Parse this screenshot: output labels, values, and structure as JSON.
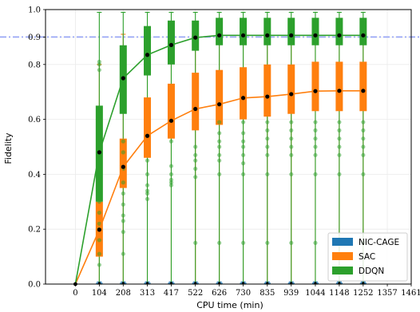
{
  "chart_data": {
    "type": "box",
    "xlabel": "CPU time (min)",
    "ylabel": "Fidelity",
    "x_ticks": [
      0,
      104,
      208,
      313,
      417,
      522,
      626,
      730,
      835,
      939,
      1044,
      1148,
      1252,
      1357,
      1461
    ],
    "y_ticks": [
      0.0,
      0.2,
      0.4,
      0.6,
      0.8,
      0.9,
      1.0
    ],
    "y_tick_labels": [
      "0.0",
      "0.2",
      "0.4",
      "0.6",
      "0.8",
      "0.9",
      "1.0"
    ],
    "xlim": [
      -130,
      1461
    ],
    "ylim": [
      0,
      1.0
    ],
    "grid": true,
    "reference_line": {
      "y": 0.9,
      "style": "dash-dot",
      "color": "#9aa7f5"
    },
    "legend": {
      "placement": "bottom-right",
      "entries": [
        "NIC-CAGE",
        "SAC",
        "DDQN"
      ]
    },
    "series": [
      {
        "name": "NIC-CAGE",
        "color": "#1f77b4",
        "x": [
          104,
          208,
          313,
          417,
          522,
          626,
          730,
          835,
          939,
          1044,
          1148,
          1252
        ],
        "mean": [
          0.003,
          0.003,
          0.003,
          0.003,
          0.003,
          0.003,
          0.003,
          0.003,
          0.003,
          0.003,
          0.003,
          0.003
        ],
        "q1": [
          0.001,
          0.001,
          0.001,
          0.001,
          0.001,
          0.001,
          0.001,
          0.001,
          0.001,
          0.001,
          0.001,
          0.001
        ],
        "q3": [
          0.005,
          0.005,
          0.005,
          0.005,
          0.005,
          0.005,
          0.005,
          0.005,
          0.005,
          0.005,
          0.005,
          0.005
        ],
        "whisker_low": [
          0.0,
          0.0,
          0.0,
          0.0,
          0.0,
          0.0,
          0.0,
          0.0,
          0.0,
          0.0,
          0.0,
          0.0
        ],
        "whisker_high": [
          0.008,
          0.008,
          0.008,
          0.008,
          0.008,
          0.008,
          0.008,
          0.008,
          0.008,
          0.008,
          0.008,
          0.008
        ]
      },
      {
        "name": "SAC",
        "color": "#ff7f0e",
        "x": [
          104,
          208,
          313,
          417,
          522,
          626,
          730,
          835,
          939,
          1044,
          1148,
          1252
        ],
        "mean": [
          0.198,
          0.427,
          0.54,
          0.595,
          0.638,
          0.655,
          0.678,
          0.683,
          0.692,
          0.703,
          0.704,
          0.704
        ],
        "q1": [
          0.1,
          0.35,
          0.46,
          0.53,
          0.56,
          0.58,
          0.6,
          0.61,
          0.62,
          0.63,
          0.63,
          0.63
        ],
        "q3": [
          0.3,
          0.53,
          0.68,
          0.73,
          0.77,
          0.78,
          0.79,
          0.8,
          0.8,
          0.81,
          0.81,
          0.81
        ],
        "whisker_low": [
          0.0,
          0.0,
          0.0,
          0.0,
          0.0,
          0.0,
          0.0,
          0.0,
          0.0,
          0.0,
          0.0,
          0.0
        ],
        "whisker_high": [
          0.8,
          0.91,
          0.9,
          0.9,
          0.9,
          0.9,
          0.9,
          0.9,
          0.9,
          0.9,
          0.9,
          0.9
        ]
      },
      {
        "name": "DDQN",
        "color": "#2ca02c",
        "x": [
          104,
          208,
          313,
          417,
          522,
          626,
          730,
          835,
          939,
          1044,
          1148,
          1252
        ],
        "mean": [
          0.48,
          0.75,
          0.835,
          0.871,
          0.898,
          0.906,
          0.906,
          0.906,
          0.906,
          0.906,
          0.906,
          0.906
        ],
        "q1": [
          0.3,
          0.62,
          0.76,
          0.8,
          0.85,
          0.87,
          0.87,
          0.87,
          0.87,
          0.87,
          0.87,
          0.87
        ],
        "q3": [
          0.65,
          0.87,
          0.94,
          0.96,
          0.96,
          0.97,
          0.97,
          0.97,
          0.97,
          0.97,
          0.97,
          0.97
        ],
        "whisker_low": [
          0.0,
          0.0,
          0.0,
          0.0,
          0.0,
          0.0,
          0.0,
          0.0,
          0.0,
          0.0,
          0.0,
          0.0
        ],
        "whisker_high": [
          0.99,
          0.99,
          0.99,
          0.99,
          0.99,
          0.99,
          0.99,
          0.99,
          0.99,
          0.99,
          0.99,
          0.99
        ],
        "outliers": [
          [
            0.81,
            0.8,
            0.78,
            0.62,
            0.6,
            0.56,
            0.52,
            0.48,
            0.45,
            0.42,
            0.38,
            0.34,
            0.3,
            0.26,
            0.22,
            0.2,
            0.16,
            0.11,
            0.07
          ],
          [
            0.52,
            0.48,
            0.42,
            0.37,
            0.33,
            0.29,
            0.25,
            0.23,
            0.19,
            0.11
          ],
          [
            0.45,
            0.4,
            0.36,
            0.34,
            0.33,
            0.31
          ],
          [
            0.52,
            0.43,
            0.4,
            0.38,
            0.37,
            0.36
          ],
          [
            0.5,
            0.47,
            0.45,
            0.42,
            0.39,
            0.15
          ],
          [
            0.59,
            0.55,
            0.52,
            0.5,
            0.47,
            0.45,
            0.4,
            0.15
          ],
          [
            0.59,
            0.55,
            0.52,
            0.5,
            0.47,
            0.44,
            0.4,
            0.15
          ],
          [
            0.59,
            0.56,
            0.53,
            0.5,
            0.47,
            0.4,
            0.15
          ],
          [
            0.59,
            0.56,
            0.53,
            0.5,
            0.47,
            0.4,
            0.15
          ],
          [
            0.59,
            0.56,
            0.53,
            0.5,
            0.47,
            0.4,
            0.15
          ],
          [
            0.59,
            0.56,
            0.53,
            0.5,
            0.47,
            0.4,
            0.15
          ],
          [
            0.59,
            0.56,
            0.53,
            0.5,
            0.47,
            0.4,
            0.15
          ]
        ]
      }
    ],
    "start_point": {
      "x": 0,
      "y": 0.0
    }
  }
}
